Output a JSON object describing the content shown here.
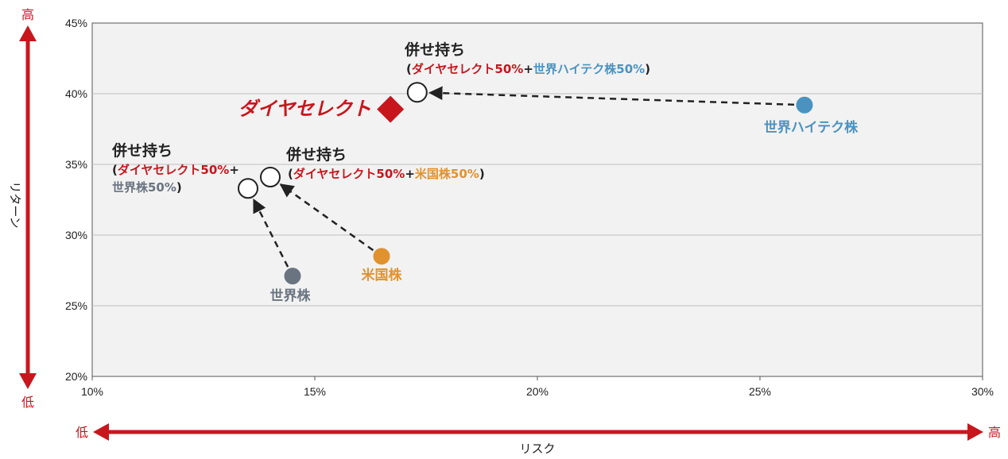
{
  "colors": {
    "red": "#c8161d",
    "blue": "#4a93c0",
    "gray": "#6a7481",
    "orange": "#e0922e",
    "dark": "#222222",
    "plot_bg": "#f2f2f2",
    "grid": "#bfbfbf"
  },
  "axis_arrows": {
    "y_high": "高",
    "y_low": "低",
    "x_low": "低",
    "x_high": "高"
  },
  "chart_data": {
    "type": "scatter",
    "title": "",
    "xlabel": "リスク",
    "ylabel": "リターン",
    "xlim": [
      10,
      30
    ],
    "ylim": [
      20,
      45
    ],
    "x_ticks": [
      "10%",
      "15%",
      "20%",
      "25%",
      "30%"
    ],
    "y_ticks": [
      "20%",
      "25%",
      "30%",
      "35%",
      "40%",
      "45%"
    ],
    "grid": true,
    "points": [
      {
        "id": "world_tech",
        "x": 26.0,
        "y": 39.2,
        "marker": "circle-filled",
        "color": "#4a93c0",
        "label": "世界ハイテク株"
      },
      {
        "id": "world",
        "x": 14.5,
        "y": 27.1,
        "marker": "circle-filled",
        "color": "#6a7481",
        "label": "世界株"
      },
      {
        "id": "us",
        "x": 16.5,
        "y": 28.5,
        "marker": "circle-filled",
        "color": "#e0922e",
        "label": "米国株"
      },
      {
        "id": "dia",
        "x": 16.7,
        "y": 38.9,
        "marker": "diamond",
        "color": "#c8161d",
        "label": "ダイヤセレクト"
      },
      {
        "id": "combo_tech",
        "x": 17.3,
        "y": 40.1,
        "marker": "circle-open",
        "color": "#222222",
        "label": "併せ持ち"
      },
      {
        "id": "combo_world",
        "x": 13.5,
        "y": 33.3,
        "marker": "circle-open",
        "color": "#222222",
        "label": "併せ持ち"
      },
      {
        "id": "combo_us",
        "x": 14.0,
        "y": 34.1,
        "marker": "circle-open",
        "color": "#222222",
        "label": "併せ持ち"
      }
    ],
    "arrows": [
      {
        "from": "world_tech",
        "to": "combo_tech"
      },
      {
        "from": "world",
        "to": "combo_world"
      },
      {
        "from": "us",
        "to": "combo_us"
      }
    ],
    "combo_notes": {
      "combo_tech": [
        {
          "text": "(",
          "color": "#222222"
        },
        {
          "text": "ダイヤセレクト50%",
          "color": "#c8161d"
        },
        {
          "text": "+",
          "color": "#222222"
        },
        {
          "text": "世界ハイテク株50%",
          "color": "#4a93c0"
        },
        {
          "text": ")",
          "color": "#222222"
        }
      ],
      "combo_us": [
        {
          "text": "(",
          "color": "#222222"
        },
        {
          "text": "ダイヤセレクト50%",
          "color": "#c8161d"
        },
        {
          "text": "+",
          "color": "#222222"
        },
        {
          "text": "米国株50%",
          "color": "#e0922e"
        },
        {
          "text": ")",
          "color": "#222222"
        }
      ],
      "combo_world_line1": [
        {
          "text": "(",
          "color": "#222222"
        },
        {
          "text": "ダイヤセレクト50%",
          "color": "#c8161d"
        },
        {
          "text": "+",
          "color": "#222222"
        }
      ],
      "combo_world_line2": [
        {
          "text": "世界株50%",
          "color": "#6a7481"
        },
        {
          "text": ")",
          "color": "#222222"
        }
      ]
    }
  }
}
